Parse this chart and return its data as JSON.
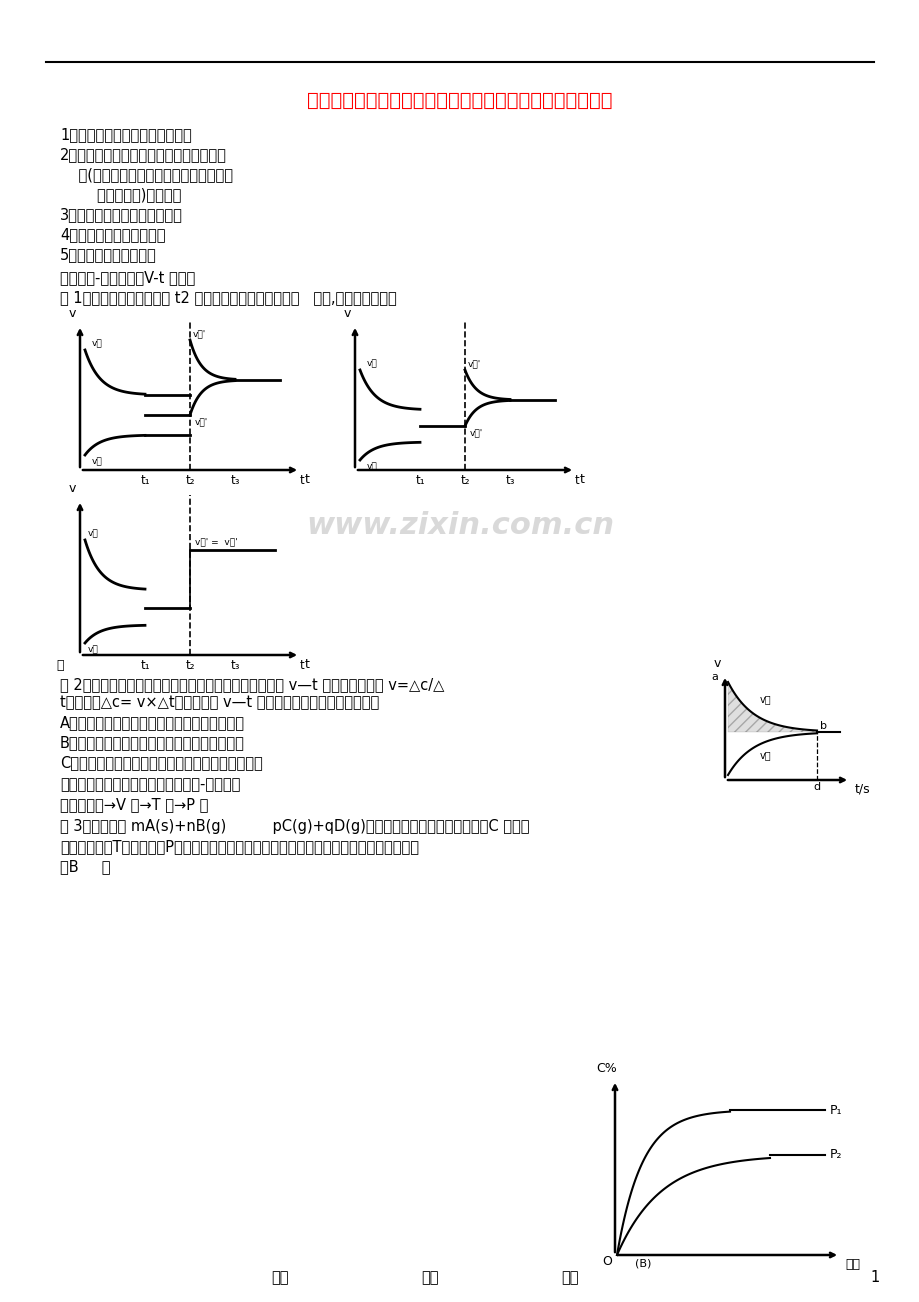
{
  "title": "河北省元氏一中高二化学《解化学平衡图像题的技巧》练习",
  "title_color": "#FF0000",
  "bg_color": "#FFFFFF",
  "watermark": "www.zixin.com.cn",
  "item1": "1、弄清横坐标和纵坐标的意义。",
  "item2": "2、弄清图像上点的意义，特别是一些特殊",
  "item2b": "    点(如与坐标轴的交点、转折点、几条曲",
  "item2c": "        线的交叉点)的意义。",
  "item3": "3、弄清图像所示的增、减性。",
  "item4": "4、弄清图像斜率的大小。",
  "item5": "5、看是否需要辅助线。",
  "section1": "一、速率-时间图象（V-t 图象）",
  "example1": "例 1、判断下列图象中时间 t2 时可能发生了哪一种变化？   分析,平衡移动情况。",
  "example2_text1": "例 2、下图表示某可逆反应达到平衡过程中某一反应物的 v—t 图象，我们知道 v=△c/△",
  "example2_text2": "t；反之，△c= v×△t。请问下列 v—t 图象中的阴影面积表示的意义是",
  "example2_optA": "A、从反应开始到平衡时，该反应物的消耗浓度",
  "example2_optB": "B、从反应开始到平衡时，该反应物的生成浓度",
  "example2_optC": "C、从反应开始到平衡时，该反应物实际减小的浓度",
  "section2": "二、转化率（或产率、百分含量等）-时间图象",
  "section2_hint": "先拐先平衡→V 大→T 高→P 大",
  "example3_text1": "例 3、可逆反应 mA(s)+nB(g)          pC(g)+qD(g)。反应中，当其它条件不变时，C 的质量",
  "example3_text2": "分数与温度（T）和压强（P）的关系如上图，根据图中曲线分析，判断下列叙述中正确的是",
  "example3_ans": "（B     ）",
  "footer_left": "用心",
  "footer_mid": "爱心",
  "footer_right": "专心",
  "footer_page": "1"
}
